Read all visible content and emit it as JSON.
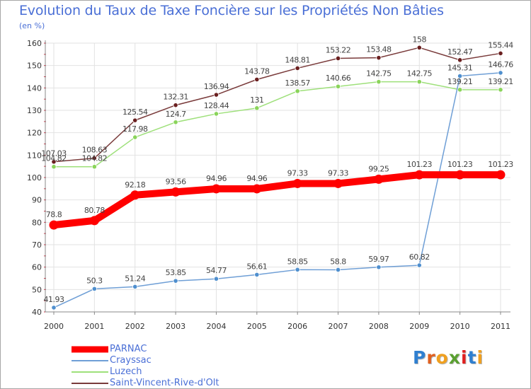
{
  "chart_data": {
    "type": "line",
    "title": "Evolution du Taux de Taxe Foncière sur les Propriétés Non Bâties",
    "subtitle": "(en %)",
    "xlabel": "",
    "ylabel": "",
    "ylim": [
      40,
      160
    ],
    "yticks": [
      40,
      50,
      60,
      70,
      80,
      90,
      100,
      110,
      120,
      130,
      140,
      150,
      160
    ],
    "categories": [
      "2000",
      "2001",
      "2002",
      "2003",
      "2004",
      "2005",
      "2006",
      "2007",
      "2008",
      "2009",
      "2010",
      "2011"
    ],
    "grid": true,
    "series": [
      {
        "name": "PARNAC",
        "color": "#ff0000",
        "values": [
          78.8,
          80.78,
          92.18,
          93.56,
          94.96,
          94.96,
          97.33,
          97.33,
          99.25,
          101.23,
          101.23,
          101.23
        ],
        "labels": [
          "78.8",
          "80.78",
          "92.18",
          "93.56",
          "94.96",
          "94.96",
          "97.33",
          "97.33",
          "99.25",
          "101.23",
          "101.23",
          "101.23"
        ]
      },
      {
        "name": "Crayssac",
        "color": "#6f9fd6",
        "marker_color": "#4f8fce",
        "values": [
          41.93,
          50.3,
          51.24,
          53.85,
          54.77,
          56.61,
          58.85,
          58.8,
          59.97,
          60.82,
          145.31,
          146.76
        ],
        "labels": [
          "41.93",
          "50.3",
          "51.24",
          "53.85",
          "54.77",
          "56.61",
          "58.85",
          "58.8",
          "59.97",
          "60.82",
          "145.31",
          "146.76"
        ]
      },
      {
        "name": "Luzech",
        "color": "#9ee07a",
        "marker_color": "#8ad45a",
        "values": [
          104.82,
          104.82,
          117.98,
          124.7,
          128.44,
          131,
          138.57,
          140.66,
          142.75,
          142.75,
          139.21,
          139.21
        ],
        "labels": [
          "104.82",
          "104.82",
          "117.98",
          "124.7",
          "128.44",
          "131",
          "138.57",
          "140.66",
          "142.75",
          "142.75",
          "139.21",
          "139.21"
        ]
      },
      {
        "name": "Saint-Vincent-Rive-d'Olt",
        "color": "#7a3b3b",
        "marker_color": "#6a1f1f",
        "values": [
          107.03,
          108.63,
          125.54,
          132.31,
          136.94,
          143.78,
          148.81,
          153.22,
          153.48,
          158,
          152.47,
          155.44
        ],
        "labels": [
          "107.03",
          "108.63",
          "125.54",
          "132.31",
          "136.94",
          "143.78",
          "148.81",
          "153.22",
          "153.48",
          "158",
          "152.47",
          "155.44"
        ]
      }
    ]
  },
  "logo": {
    "letters": [
      "P",
      "r",
      "o",
      "x",
      "i",
      "t",
      "i"
    ],
    "colors": [
      "#2f7fd0",
      "#e06020",
      "#f0a020",
      "#5aa030",
      "#e02020",
      "#2f7fd0",
      "#f0a020"
    ]
  }
}
